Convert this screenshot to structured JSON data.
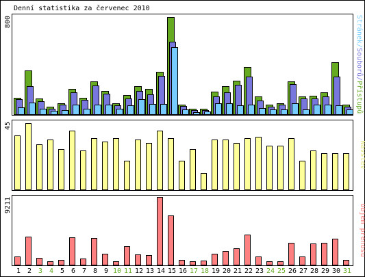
{
  "title": "Denní statistika za červenec 2010",
  "chart_data": [
    {
      "type": "bar",
      "title": "Denní statistika za červenec 2010",
      "ylabel": "Stránek/Souborů/Přístupů",
      "ymax_label": "800",
      "ylim": [
        0,
        800
      ],
      "categories": [
        "1",
        "2",
        "3",
        "4",
        "5",
        "6",
        "7",
        "8",
        "9",
        "10",
        "11",
        "12",
        "13",
        "14",
        "15",
        "16",
        "17",
        "18",
        "19",
        "20",
        "21",
        "22",
        "23",
        "24",
        "25",
        "26",
        "27",
        "28",
        "29",
        "30",
        "31"
      ],
      "weekend_days": [
        "3",
        "4",
        "10",
        "11",
        "17",
        "18",
        "24",
        "25",
        "31"
      ],
      "series": [
        {
          "name": "Přístupů",
          "color": "#66aa22",
          "values": [
            135,
            355,
            125,
            60,
            90,
            205,
            135,
            265,
            190,
            90,
            155,
            225,
            205,
            345,
            790,
            80,
            45,
            45,
            185,
            225,
            270,
            385,
            145,
            80,
            90,
            265,
            145,
            150,
            180,
            420,
            75
          ]
        },
        {
          "name": "Souborů",
          "color": "#7777dd",
          "values": [
            120,
            225,
            105,
            45,
            75,
            175,
            115,
            235,
            165,
            70,
            130,
            190,
            160,
            310,
            590,
            65,
            35,
            35,
            145,
            180,
            240,
            305,
            110,
            60,
            75,
            245,
            125,
            125,
            145,
            305,
            60
          ]
        },
        {
          "name": "Stránek",
          "color": "#77ccff",
          "values": [
            55,
            95,
            45,
            25,
            35,
            80,
            45,
            75,
            75,
            45,
            70,
            120,
            85,
            85,
            545,
            40,
            15,
            20,
            90,
            90,
            70,
            75,
            50,
            40,
            40,
            90,
            40,
            75,
            80,
            70,
            40
          ]
        }
      ]
    },
    {
      "type": "bar",
      "ylabel": "Návštěv",
      "ymax_label": "45",
      "ylim": [
        0,
        45
      ],
      "categories": [
        "1",
        "2",
        "3",
        "4",
        "5",
        "6",
        "7",
        "8",
        "9",
        "10",
        "11",
        "12",
        "13",
        "14",
        "15",
        "16",
        "17",
        "18",
        "19",
        "20",
        "21",
        "22",
        "23",
        "24",
        "25",
        "26",
        "27",
        "28",
        "29",
        "30",
        "31"
      ],
      "series": [
        {
          "name": "Návštěv",
          "color": "#ffff99",
          "values": [
            36,
            44,
            30,
            33,
            27,
            39,
            26,
            34,
            32,
            34,
            19,
            33,
            31,
            39,
            34,
            19,
            27,
            11,
            33,
            33,
            31,
            34,
            35,
            29,
            29,
            34,
            19,
            26,
            24,
            24,
            24
          ]
        }
      ]
    },
    {
      "type": "bar",
      "ylabel": "Objem přenosu",
      "ymax_label": "9211",
      "ylim": [
        0,
        9211
      ],
      "categories": [
        "1",
        "2",
        "3",
        "4",
        "5",
        "6",
        "7",
        "8",
        "9",
        "10",
        "11",
        "12",
        "13",
        "14",
        "15",
        "16",
        "17",
        "18",
        "19",
        "20",
        "21",
        "22",
        "23",
        "24",
        "25",
        "26",
        "27",
        "28",
        "29",
        "30",
        "31"
      ],
      "series": [
        {
          "name": "Objem přenosu",
          "color": "#ff8080",
          "values": [
            1150,
            3800,
            900,
            420,
            650,
            3700,
            800,
            3600,
            1450,
            430,
            2550,
            1350,
            1300,
            9211,
            6700,
            650,
            430,
            580,
            1450,
            1900,
            2200,
            4100,
            1100,
            500,
            420,
            3000,
            1150,
            2850,
            3000,
            3500,
            620
          ]
        }
      ]
    }
  ]
}
